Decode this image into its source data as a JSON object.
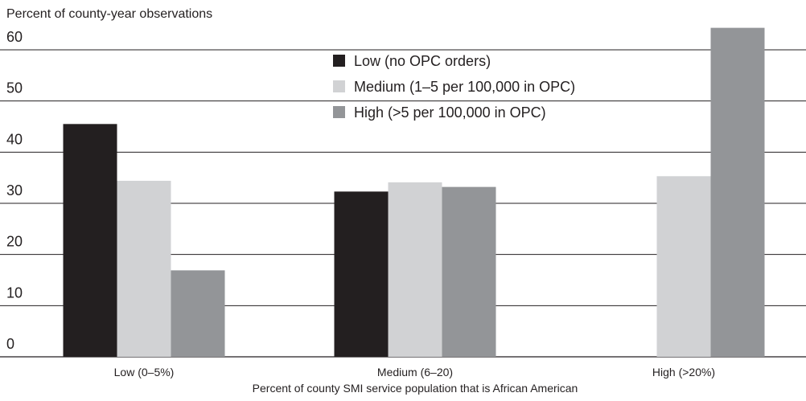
{
  "chart_data": {
    "type": "bar",
    "title": "",
    "ylabel": "Percent of county-year observations",
    "xlabel": "Percent of county SMI service population that is African American",
    "ylim": [
      0,
      64
    ],
    "yticks": [
      0,
      10,
      20,
      30,
      40,
      50,
      60
    ],
    "categories": [
      "Low (0–5%)",
      "Medium (6–20)",
      "High (>20%)"
    ],
    "series": [
      {
        "name": "Low (no OPC orders)",
        "color": "#231f20",
        "values": [
          45.5,
          32.3,
          0
        ]
      },
      {
        "name": "Medium (1–5 per 100,000 in OPC)",
        "color": "#d1d2d4",
        "values": [
          34.4,
          34.1,
          35.3
        ]
      },
      {
        "name": "High (>5 per 100,000 in OPC)",
        "color": "#939598",
        "values": [
          16.9,
          33.2,
          64.3
        ]
      }
    ],
    "legend_position": "top-center",
    "grid": true
  }
}
